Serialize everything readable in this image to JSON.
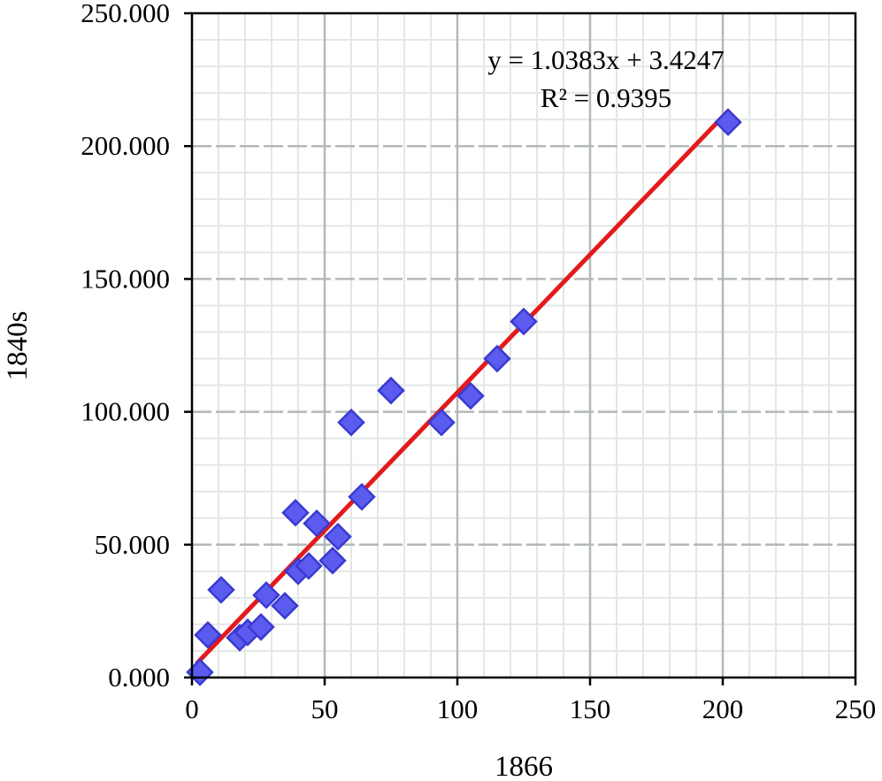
{
  "chart_data": {
    "type": "scatter",
    "title": "",
    "xlabel": "1866",
    "ylabel": "1840s",
    "xlim": [
      0,
      250
    ],
    "ylim": [
      0,
      250
    ],
    "x_ticks": [
      0,
      50,
      100,
      150,
      200,
      250
    ],
    "y_ticks": [
      0,
      50,
      100,
      150,
      200,
      250
    ],
    "x_tick_labels": [
      "0",
      "50",
      "100",
      "150",
      "200",
      "250"
    ],
    "y_tick_labels": [
      "0.000",
      "50.000",
      "100.000",
      "150.000",
      "200.000",
      "250.000"
    ],
    "major_grid": true,
    "minor_grid": true,
    "minor_step": 10,
    "series": [
      {
        "marker": "diamond",
        "color": "#5b5bf0",
        "edge_color": "#3a3ad0",
        "points": [
          {
            "x": 3,
            "y": 2
          },
          {
            "x": 6,
            "y": 16
          },
          {
            "x": 11,
            "y": 33
          },
          {
            "x": 18,
            "y": 15
          },
          {
            "x": 21,
            "y": 17
          },
          {
            "x": 26,
            "y": 19
          },
          {
            "x": 28,
            "y": 31
          },
          {
            "x": 35,
            "y": 27
          },
          {
            "x": 39,
            "y": 62
          },
          {
            "x": 40,
            "y": 40
          },
          {
            "x": 44,
            "y": 42
          },
          {
            "x": 47,
            "y": 58
          },
          {
            "x": 53,
            "y": 44
          },
          {
            "x": 55,
            "y": 53
          },
          {
            "x": 60,
            "y": 96
          },
          {
            "x": 64,
            "y": 68
          },
          {
            "x": 75,
            "y": 108
          },
          {
            "x": 94,
            "y": 96
          },
          {
            "x": 105,
            "y": 106
          },
          {
            "x": 115,
            "y": 120
          },
          {
            "x": 125,
            "y": 134
          },
          {
            "x": 202,
            "y": 209
          }
        ]
      }
    ],
    "trendline": {
      "slope": 1.0383,
      "intercept": 3.4247,
      "x_range": [
        2,
        202
      ],
      "color": "#e31a1c",
      "equation": "y = 1.0383x + 3.4247",
      "r_squared": "R² = 0.9395"
    },
    "colors": {
      "major_grid": "#b2b9b6",
      "minor_grid": "#e3e7e5",
      "axis": "#000000"
    }
  }
}
